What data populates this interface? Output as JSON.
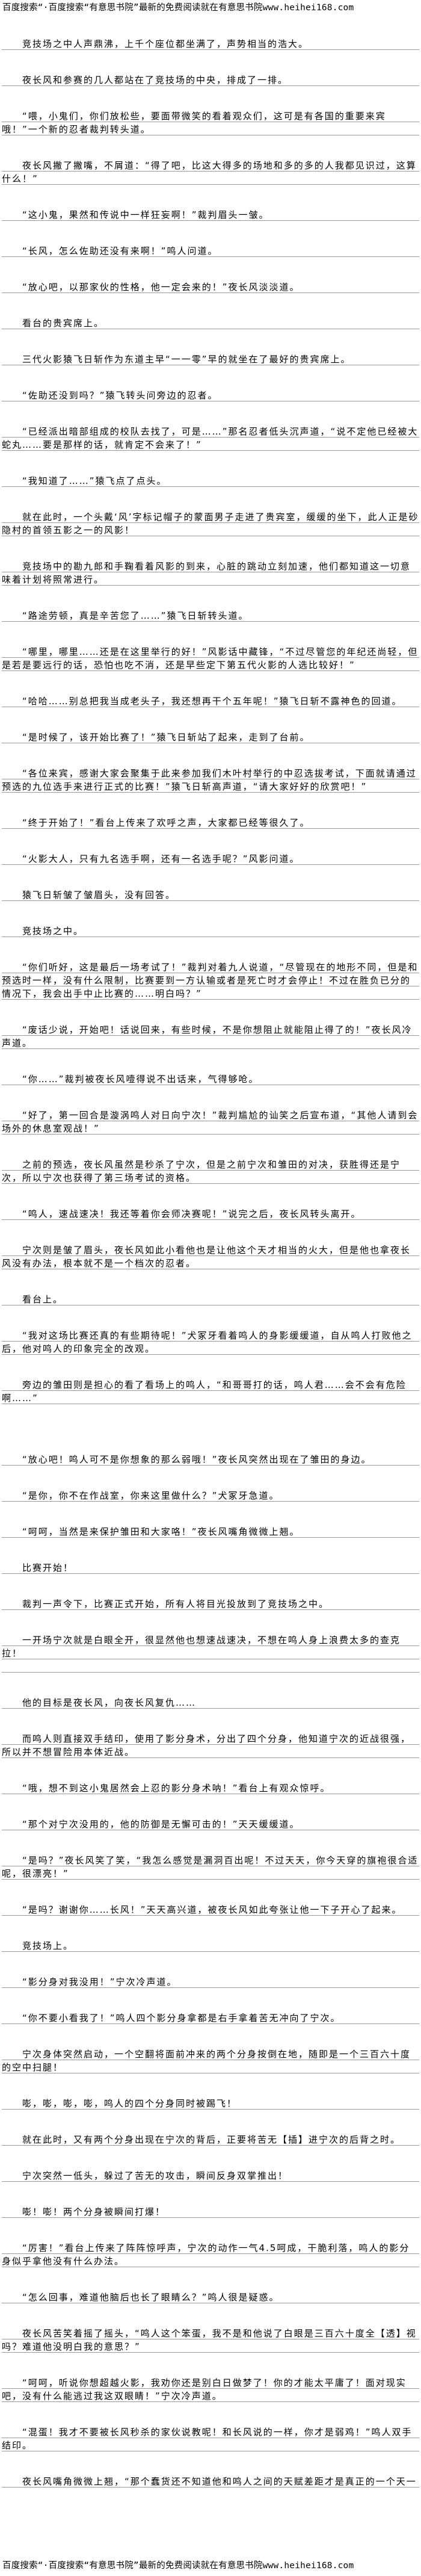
{
  "banner": "百度搜索“·百度搜索“有意思书院”最新的免费阅读就在有意思书院www.heihei168.com",
  "paragraphs": [
    "竞技场之中人声鼎沸，上千个座位都坐满了，声势相当的浩大。",
    "夜长风和参赛的几人都站在了竞技场的中央，排成了一排。",
    "“喂，小鬼们，你们放松些，要面带微笑的看着观众们，这可是有各国的重要来宾哦！”一个新的忍者裁判转头道。",
    "夜长风撇了撇嘴，不屑道：“得了吧，比这大得多的场地和多的多的人我都见识过，这算什么！”",
    "“这小鬼，果然和传说中一样狂妄啊！”裁判眉头一皱。",
    "“长风，怎么佐助还没有来啊！”鸣人问道。",
    "“放心吧，以那家伙的性格，他一定会来的！”夜长风淡淡道。",
    "看台的贵宾席上。",
    "三代火影猿飞日斩作为东道主早“一一零”早的就坐在了最好的贵宾席上。",
    "“佐助还没到吗？”猿飞转头问旁边的忍者。",
    "“已经派出暗部组成的校队去找了，可是……”那名忍者低头沉声道，“说不定他已经被大蛇丸……要是那样的话，就肯定不会来了！”",
    "“我知道了……”猿飞点了点头。",
    "就在此时，一个头戴‘风’字标记帽子的蒙面男子走进了贵宾室，缓缓的坐下，此人正是砂隐村的首领五影之一的风影！",
    "竞技场中的勘九郎和手鞠看着风影的到来，心脏的跳动立刻加速，他们都知道这一切意味着计划将照常进行。",
    "“路途劳顿，真是辛苦您了……”猿飞日斩转头道。",
    "“哪里，哪里……还是在这里举行的好！”风影话中藏锋，“不过尽管您的年纪还尚轻，但是若是要远行的话，恐怕也吃不消，还是早些定下第五代火影的人选比较好！”",
    "“哈哈……别总把我当成老头子，我还想再干个五年呢！”猿飞日斩不露神色的回道。",
    "“是时候了，该开始比赛了！”猿飞日斩站了起来，走到了台前。",
    "“各位来宾，感谢大家会聚集于此来参加我们木叶村举行的中忍选拔考试，下面就请通过预选的九位选手来进行正式的比赛！”猿飞日斩高声道，“请大家好好的欣赏吧！”",
    "“终于开始了！”看台上传来了欢呼之声，大家都已经等很久了。",
    "“火影大人，只有九名选手啊，还有一名选手呢？”风影问道。",
    "猿飞日斩皱了皱眉头，没有回答。",
    "竞技场之中。",
    "“你们听好，这是最后一场考试了！”裁判对着九人说道，“尽管现在的地形不同，但是和预选时一样，没有什么限制，比赛要到一方认输或者是死亡时才会停止！不过在胜负已分的情况下，我会出手中止比赛的……明白吗？”",
    "“废话少说，开始吧！话说回来，有些时候，不是你想阻止就能阻止得了的！”夜长风冷声道。",
    "“你……”裁判被夜长风噎得说不出话来，气得够呛。",
    "“好了，第一回合是漩涡鸣人对日向宁次！”裁判尴尬的讪笑之后宣布道，“其他人请到会场外的休息室观战！”",
    "之前的预选，夜长风虽然是秒杀了宁次，但是之前宁次和雏田的对决，获胜得还是宁次，所以宁次也获得了第三场考试的资格。",
    "“鸣人，速战速决！我还等着你会师决赛呢！”说完之后，夜长风转头离开。",
    "宁次则是皱了眉头，夜长风如此小看他也是让他这个天才相当的火大，但是他也拿夜长风没有办法，根本就不是一个档次的忍者。",
    "看台上。",
    "“我对这场比赛还真的有些期待呢！”犬冢牙看着鸣人的身影缓缓道，自从鸣人打败他之后，他对鸣人的印象完全的改观。",
    "旁边的雏田则是担心的看了看场上的鸣人，“和哥哥打的话，鸣人君……会不会有危险啊……”",
    "“放心吧！鸣人可不是你想象的那么弱哦！”夜长风突然出现在了雏田的身边。",
    "“是你，你不在作战室，你来这里做什么？”犬冢牙急道。",
    "“呵呵，当然是来保护雏田和大家咯！”夜长风嘴角微微上翘。",
    "比赛开始！",
    "裁判一声令下，比赛正式开始，所有人将目光投放到了竞技场之中。",
    "一开场宁次就是白眼全开，很显然他也想速战速决，不想在鸣人身上浪费太多的查克拉！",
    "他的目标是夜长风，向夜长风复仇……",
    "而鸣人则直接双手结印，使用了影分身术，分出了四个分身，他知道宁次的近战很强，所以并不想冒险用本体近战。",
    "“哦，想不到这小鬼居然会上忍的影分身术呐！”看台上有观众惊呼。",
    "“那个对宁次没用的，他的防御是无懈可击的！”天天缓缓道。",
    "“是吗？”夜长风笑了笑，“我怎么感觉是漏洞百出呢！不过天天，你今天穿的旗袍很合适呢，很漂亮！”",
    "“是吗？谢谢你……长风！”天天高兴道，被夜长风如此夸张让他一下子开心了起来。",
    "竞技场上。",
    "“影分身对我没用！”宁次冷声道。",
    "“你不要小看我了！”鸣人四个影分身拿都是右手拿着苦无冲向了宁次。",
    "宁次身体突然启动，一个空翻将面前冲来的两个分身按倒在地，随即是一个三百六十度的空中扫腿！",
    "嘭，嘭，嘭，嘭，鸣人的四个分身同时被踢飞！",
    "就在此时，又有两个分身出现在宁次的背后，正要将苦无【插】进宁次的后背之时。",
    "宁次突然一低头，躲过了苦无的攻击，瞬间反身双掌推出！",
    "嘭！嘭！两个分身被瞬间打爆！",
    "“厉害！”看台上传来了阵阵惊呼声，宁次的动作一气4.5呵成，干脆利落，鸣人的影分身似乎拿他没有什么办法。",
    "“怎么回事，难道他脑后也长了眼睛么？”鸣人很是疑惑。",
    "夜长风苦笑着摇了摇头，“鸣人这个笨蛋，我不是和他说了白眼是三百六十度全【透】视吗？难道他没明白我的意思？”",
    "“呵呵，听说你想超越火影，我劝你还是别白日做梦了！你的才能太平庸了！面对现实吧，没有什么能逃过我这双眼睛！”宁次冷声道。",
    "“混蛋！我才不要被长风秒杀的家伙说教呢！和长风说的一样，你才是弱鸡！”鸣人双手结印。",
    "夜长风嘴角微微上翘，“那个蠢货还不知道他和鸣人之间的天赋差距才是真正的一个天一"
  ]
}
